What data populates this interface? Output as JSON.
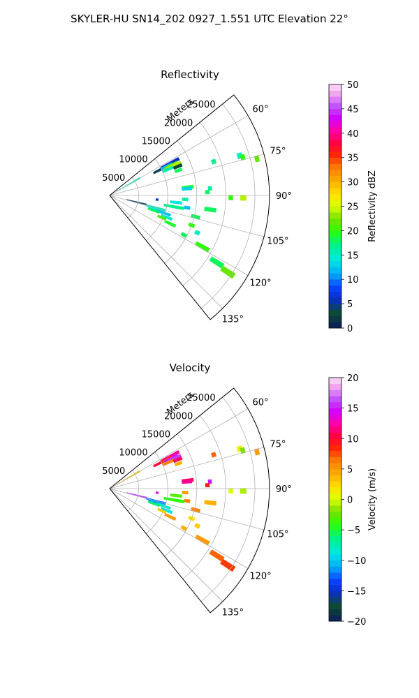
{
  "figure": {
    "title": "SKYLER-HU  SN14_202  0927_1.551 UTC Elevation 22°"
  },
  "chart_data": [
    {
      "type": "heatmap",
      "subtype": "polar-sector-ppi",
      "title": "Reflectivity",
      "range_axis_label": "Meters",
      "range_ticks": [
        "5000",
        "10000",
        "15000",
        "20000",
        "25000"
      ],
      "range_tick_values": [
        5000,
        10000,
        15000,
        20000,
        25000
      ],
      "range_max": 27500,
      "azimuth_range": [
        51,
        141
      ],
      "azimuth_ticks": [
        "60°",
        "75°",
        "90°",
        "105°",
        "120°",
        "135°"
      ],
      "azimuth_tick_values": [
        60,
        75,
        90,
        105,
        120,
        135
      ],
      "grid": true,
      "colorbar": {
        "label": "Reflectivity dBZ",
        "min": 0,
        "max": 50,
        "ticks": [
          "0",
          "5",
          "10",
          "15",
          "20",
          "25",
          "30",
          "35",
          "40",
          "45",
          "50"
        ],
        "tick_values": [
          0,
          5,
          10,
          15,
          20,
          25,
          30,
          35,
          40,
          45,
          50
        ]
      },
      "echoes": [
        {
          "az": 60,
          "r": [
            1500,
            6000
          ],
          "value": 15
        },
        {
          "az": 62,
          "r": [
            10000,
            13500
          ],
          "value": 6
        },
        {
          "az": 63,
          "r": [
            8500,
            10000
          ],
          "value": 4
        },
        {
          "az": 63,
          "r": [
            10000,
            12000
          ],
          "value": 12
        },
        {
          "az": 64,
          "r": [
            10500,
            13000
          ],
          "value": 22
        },
        {
          "az": 65,
          "r": [
            11000,
            13500
          ],
          "value": 24
        },
        {
          "az": 66,
          "r": [
            10000,
            12000
          ],
          "value": 16
        },
        {
          "az": 67,
          "r": [
            12000,
            13500
          ],
          "value": 3
        },
        {
          "az": 70,
          "r": [
            12000,
            13200
          ],
          "value": 18
        },
        {
          "az": 72,
          "r": [
            18500,
            19200
          ],
          "value": 17
        },
        {
          "az": 73,
          "r": [
            23000,
            23800
          ],
          "value": 15
        },
        {
          "az": 74,
          "r": [
            23500,
            24200
          ],
          "value": 20
        },
        {
          "az": 76,
          "r": [
            25800,
            26500
          ],
          "value": 22
        },
        {
          "az": 84,
          "r": [
            12500,
            14500
          ],
          "value": 19
        },
        {
          "az": 85,
          "r": [
            12500,
            14200
          ],
          "value": 13
        },
        {
          "az": 86,
          "r": [
            17000,
            17600
          ],
          "value": 16
        },
        {
          "az": 88,
          "r": [
            16500,
            17200
          ],
          "value": 18
        },
        {
          "az": 91,
          "r": [
            20500,
            21200
          ],
          "value": 20
        },
        {
          "az": 91,
          "r": [
            22500,
            23500
          ],
          "value": 24
        },
        {
          "az": 95,
          "r": [
            8000,
            8400
          ],
          "value": 6
        },
        {
          "az": 96,
          "r": [
            10500,
            12500
          ],
          "value": 14
        },
        {
          "az": 99,
          "r": [
            13000,
            14000
          ],
          "value": 12
        },
        {
          "az": 100,
          "r": [
            9500,
            13000
          ],
          "value": 17
        },
        {
          "az": 104,
          "r": [
            3000,
            6500
          ],
          "value": 4
        },
        {
          "az": 105,
          "r": [
            6500,
            10000
          ],
          "value": 16
        },
        {
          "az": 107,
          "r": [
            7000,
            9500
          ],
          "value": 14
        },
        {
          "az": 108,
          "r": [
            8500,
            11000
          ],
          "value": 12
        },
        {
          "az": 109,
          "r": [
            7000,
            9000
          ],
          "value": 18
        },
        {
          "az": 111,
          "r": [
            9500,
            11500
          ],
          "value": 15
        },
        {
          "az": 113,
          "r": [
            9000,
            10500
          ],
          "value": 21
        },
        {
          "az": 115,
          "r": [
            10500,
            12500
          ],
          "value": 19
        },
        {
          "az": 118,
          "r": [
            14000,
            15000
          ],
          "value": 18
        },
        {
          "az": 119,
          "r": [
            17000,
            19500
          ],
          "value": 20
        },
        {
          "az": 122,
          "r": [
            20500,
            23000
          ],
          "value": 18
        },
        {
          "az": 123,
          "r": [
            23000,
            25500
          ],
          "value": 22
        },
        {
          "az": 113,
          "r": [
            16000,
            16800
          ],
          "value": 15
        },
        {
          "az": 98,
          "r": [
            16500,
            18500
          ],
          "value": 18
        },
        {
          "az": 93,
          "r": [
            12500,
            13500
          ],
          "value": 16
        },
        {
          "az": 104,
          "r": [
            14500,
            16000
          ],
          "value": 18
        },
        {
          "az": 110,
          "r": [
            14500,
            15500
          ],
          "value": 20
        }
      ]
    },
    {
      "type": "heatmap",
      "subtype": "polar-sector-ppi",
      "title": "Velocity",
      "range_axis_label": "Meters",
      "range_ticks": [
        "5000",
        "10000",
        "15000",
        "20000",
        "25000"
      ],
      "range_tick_values": [
        5000,
        10000,
        15000,
        20000,
        25000
      ],
      "range_max": 27500,
      "azimuth_range": [
        51,
        141
      ],
      "azimuth_ticks": [
        "60°",
        "75°",
        "90°",
        "105°",
        "120°",
        "135°"
      ],
      "azimuth_tick_values": [
        60,
        75,
        90,
        105,
        120,
        135
      ],
      "grid": true,
      "colorbar": {
        "label": "Velocity (m/s)",
        "min": -20,
        "max": 20,
        "ticks": [
          "−20",
          "−15",
          "−10",
          "−5",
          "0",
          "5",
          "10",
          "15",
          "20"
        ],
        "tick_values": [
          -20,
          -15,
          -10,
          -5,
          0,
          5,
          10,
          15,
          20
        ]
      },
      "echoes": [
        {
          "az": 60,
          "r": [
            1500,
            6000
          ],
          "value": 3
        },
        {
          "az": 62,
          "r": [
            10000,
            13500
          ],
          "value": 12
        },
        {
          "az": 63,
          "r": [
            8500,
            10000
          ],
          "value": 10
        },
        {
          "az": 63,
          "r": [
            10000,
            12000
          ],
          "value": 8
        },
        {
          "az": 64,
          "r": [
            10500,
            13000
          ],
          "value": 15
        },
        {
          "az": 65,
          "r": [
            11000,
            13500
          ],
          "value": 16
        },
        {
          "az": 66,
          "r": [
            10000,
            12000
          ],
          "value": 6
        },
        {
          "az": 67,
          "r": [
            12000,
            13500
          ],
          "value": 11
        },
        {
          "az": 70,
          "r": [
            12000,
            13200
          ],
          "value": 4
        },
        {
          "az": 72,
          "r": [
            18500,
            19200
          ],
          "value": 7
        },
        {
          "az": 73,
          "r": [
            23000,
            23800
          ],
          "value": 1
        },
        {
          "az": 74,
          "r": [
            23500,
            24200
          ],
          "value": -2
        },
        {
          "az": 76,
          "r": [
            25800,
            26500
          ],
          "value": 5
        },
        {
          "az": 84,
          "r": [
            12500,
            14500
          ],
          "value": 11
        },
        {
          "az": 85,
          "r": [
            12500,
            14200
          ],
          "value": 12
        },
        {
          "az": 86,
          "r": [
            17000,
            17600
          ],
          "value": 15
        },
        {
          "az": 88,
          "r": [
            16500,
            17200
          ],
          "value": 9
        },
        {
          "az": 91,
          "r": [
            20500,
            21200
          ],
          "value": 0
        },
        {
          "az": 91,
          "r": [
            22500,
            23500
          ],
          "value": -1
        },
        {
          "az": 95,
          "r": [
            8000,
            8400
          ],
          "value": 14
        },
        {
          "az": 96,
          "r": [
            10500,
            12500
          ],
          "value": -3
        },
        {
          "az": 99,
          "r": [
            13000,
            14000
          ],
          "value": 6
        },
        {
          "az": 100,
          "r": [
            9500,
            13000
          ],
          "value": -4
        },
        {
          "az": 104,
          "r": [
            3000,
            6500
          ],
          "value": 16
        },
        {
          "az": 105,
          "r": [
            6500,
            10000
          ],
          "value": -12
        },
        {
          "az": 107,
          "r": [
            7000,
            9500
          ],
          "value": -11
        },
        {
          "az": 108,
          "r": [
            8500,
            11000
          ],
          "value": -8
        },
        {
          "az": 109,
          "r": [
            7000,
            9000
          ],
          "value": -6
        },
        {
          "az": 111,
          "r": [
            9500,
            11500
          ],
          "value": -9
        },
        {
          "az": 113,
          "r": [
            9000,
            10500
          ],
          "value": 3
        },
        {
          "az": 115,
          "r": [
            10500,
            12500
          ],
          "value": 5
        },
        {
          "az": 118,
          "r": [
            14000,
            15000
          ],
          "value": 4
        },
        {
          "az": 119,
          "r": [
            17000,
            19500
          ],
          "value": 5
        },
        {
          "az": 122,
          "r": [
            20500,
            23000
          ],
          "value": 7
        },
        {
          "az": 123,
          "r": [
            23000,
            25500
          ],
          "value": 8
        },
        {
          "az": 113,
          "r": [
            16000,
            16800
          ],
          "value": 3
        },
        {
          "az": 98,
          "r": [
            16500,
            18500
          ],
          "value": 4
        },
        {
          "az": 93,
          "r": [
            12500,
            13500
          ],
          "value": 5
        },
        {
          "az": 104,
          "r": [
            14500,
            16000
          ],
          "value": 6
        },
        {
          "az": 110,
          "r": [
            14500,
            15500
          ],
          "value": 2
        }
      ]
    }
  ]
}
